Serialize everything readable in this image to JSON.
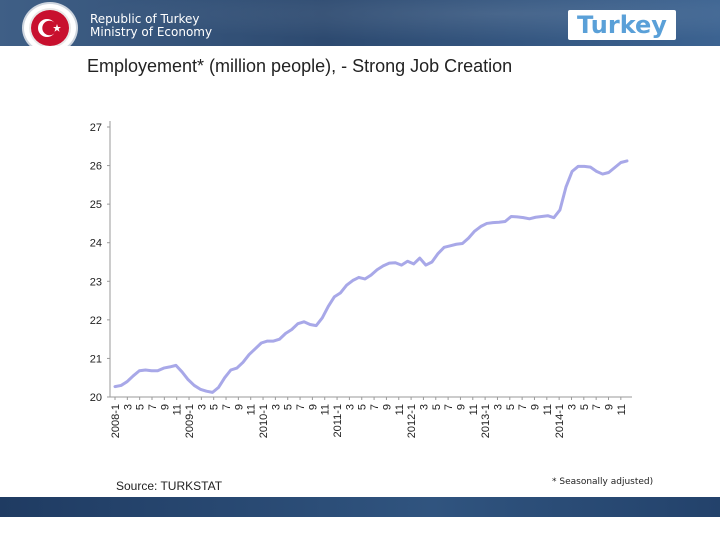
{
  "header": {
    "org_line1": "Republic of Turkey",
    "org_line2": "Ministry of Economy",
    "logo_text": "Turkey",
    "colors": {
      "bar": "#2d4a70",
      "emblem_red": "#c8102e",
      "logo": "#5aa0d8"
    }
  },
  "title": "Employement* (million people), - Strong Job Creation",
  "source": "Source: TURKSTAT",
  "note": "* Seasonally adjusted)",
  "chart_data": {
    "type": "line",
    "title": "",
    "xlabel": "",
    "ylabel": "",
    "ylim": [
      20,
      27
    ],
    "yticks": [
      20,
      21,
      22,
      23,
      24,
      25,
      26,
      27
    ],
    "line_color": "#a8a8e8",
    "xtick_labels": [
      "2008-1",
      "3",
      "5",
      "7",
      "9",
      "11",
      "2009-1",
      "3",
      "5",
      "7",
      "9",
      "11",
      "2010-1",
      "3",
      "5",
      "7",
      "9",
      "11",
      "2011-1",
      "3",
      "5",
      "7",
      "9",
      "11",
      "2012-1",
      "3",
      "5",
      "7",
      "9",
      "11",
      "2013-1",
      "3",
      "5",
      "7",
      "9",
      "11",
      "2014-1",
      "3",
      "5",
      "7",
      "9",
      "11"
    ],
    "series": [
      {
        "name": "Employment",
        "values": [
          20.27,
          20.3,
          20.4,
          20.55,
          20.68,
          20.7,
          20.68,
          20.68,
          20.75,
          20.78,
          20.82,
          20.65,
          20.45,
          20.3,
          20.2,
          20.15,
          20.12,
          20.25,
          20.5,
          20.7,
          20.75,
          20.9,
          21.1,
          21.25,
          21.4,
          21.45,
          21.45,
          21.5,
          21.65,
          21.75,
          21.9,
          21.95,
          21.88,
          21.85,
          22.05,
          22.35,
          22.6,
          22.7,
          22.9,
          23.02,
          23.1,
          23.06,
          23.16,
          23.3,
          23.4,
          23.47,
          23.48,
          23.42,
          23.52,
          23.45,
          23.6,
          23.42,
          23.5,
          23.72,
          23.88,
          23.92,
          23.96,
          23.98,
          24.12,
          24.3,
          24.42,
          24.5,
          24.52,
          24.53,
          24.55,
          24.68,
          24.67,
          24.65,
          24.62,
          24.66,
          24.68,
          24.7,
          24.65,
          24.85,
          25.45,
          25.85,
          25.98,
          25.98,
          25.96,
          25.85,
          25.78,
          25.82,
          25.95,
          26.08,
          26.12
        ]
      }
    ]
  }
}
